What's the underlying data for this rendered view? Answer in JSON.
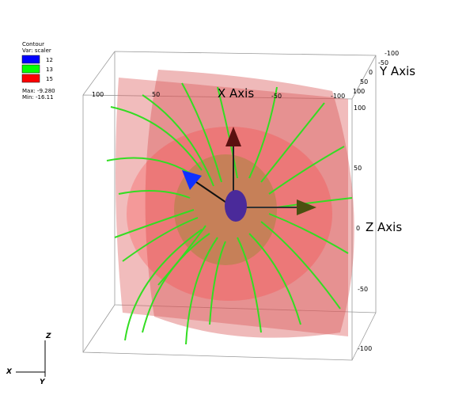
{
  "legend": {
    "title": "Contour",
    "variable": "Var: scaler",
    "entries": [
      {
        "label": "12",
        "color": "#0000ff"
      },
      {
        "label": "13",
        "color": "#00ff00"
      },
      {
        "label": "15",
        "color": "#ff0000"
      }
    ],
    "max": "Max: -9.280",
    "min": "Min: -16.11"
  },
  "axes": {
    "x": {
      "title": "X Axis",
      "ticks": [
        "100",
        "50",
        "-50",
        "-100"
      ]
    },
    "y": {
      "title": "Y Axis",
      "ticks": [
        "-100",
        "-50",
        "0",
        "50",
        "100"
      ]
    },
    "z": {
      "title": "Z Axis",
      "ticks": [
        "100",
        "50",
        "0",
        "-50",
        "-100"
      ]
    }
  },
  "triad": {
    "z": "Z",
    "x": "X",
    "y": "Y"
  }
}
